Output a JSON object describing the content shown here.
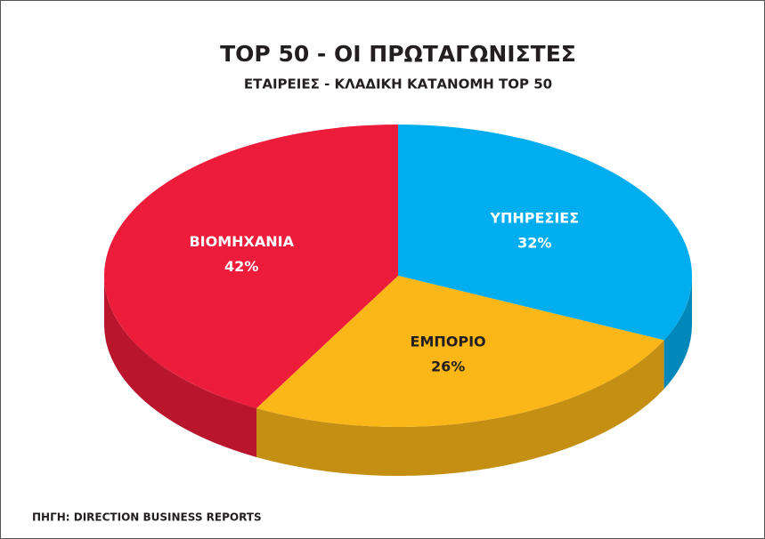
{
  "chart_data": {
    "type": "pie",
    "title": "TOP 50 - ΟΙ ΠΡΩΤΑΓΩΝΙΣΤΕΣ",
    "subtitle": "ΕΤΑΙΡΕΙΕΣ - ΚΛΑΔΙΚΗ ΚΑΤΑΝΟΜΗ TOP 50",
    "source": "ΠΗΓΗ: DIRECTION BUSINESS REPORTS",
    "categories": [
      "ΥΠΗΡΕΣΙΕΣ",
      "ΕΜΠΟΡΙΟ",
      "ΒΙΟΜΗΧΑΝΙΑ"
    ],
    "values": [
      32,
      26,
      42
    ],
    "value_labels": [
      "32%",
      "26%",
      "42%"
    ],
    "colors": [
      "#00aeef",
      "#fbb717",
      "#ed1c3a"
    ]
  }
}
